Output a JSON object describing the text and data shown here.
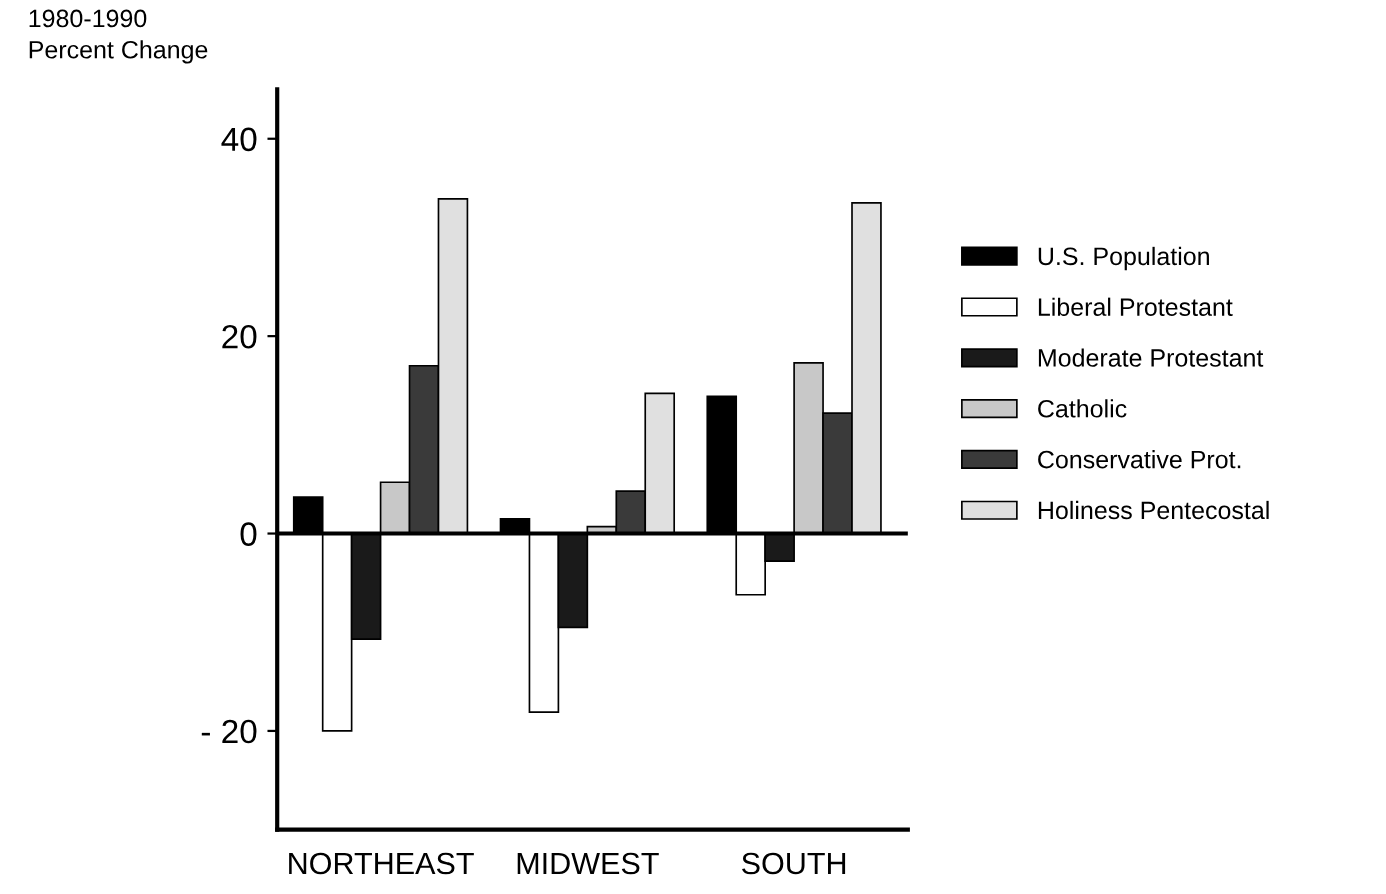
{
  "chart_data": {
    "type": "bar",
    "title": "1980-1990",
    "ylabel": "Percent Change",
    "categories": [
      "NORTHEAST",
      "MIDWEST",
      "SOUTH"
    ],
    "series": [
      {
        "name": "U.S. Population",
        "color": "#000000",
        "values": [
          3.7,
          1.5,
          13.9
        ]
      },
      {
        "name": "Liberal Protestant",
        "color": "#ffffff",
        "values": [
          -20,
          -18.1,
          -6.2
        ]
      },
      {
        "name": "Moderate Protestant",
        "color": "#1a1a1a",
        "values": [
          -10.7,
          -9.5,
          -2.8
        ]
      },
      {
        "name": "Catholic",
        "color": "#c8c8c8",
        "values": [
          5.2,
          0.7,
          17.3
        ]
      },
      {
        "name": "Conservative Prot.",
        "color": "#3a3a3a",
        "values": [
          17,
          4.3,
          12.2
        ]
      },
      {
        "name": "Holiness Pentecostal",
        "color": "#e0e0e0",
        "values": [
          33.9,
          14.2,
          33.5
        ]
      }
    ],
    "ylim": [
      -30,
      45
    ],
    "yticks": [
      {
        "value": -20,
        "label": "- 20"
      },
      0,
      20,
      40
    ],
    "ref_lines": [
      {
        "axis": "y",
        "value": 0,
        "label": null
      }
    ],
    "legend": "right",
    "grid": false
  }
}
